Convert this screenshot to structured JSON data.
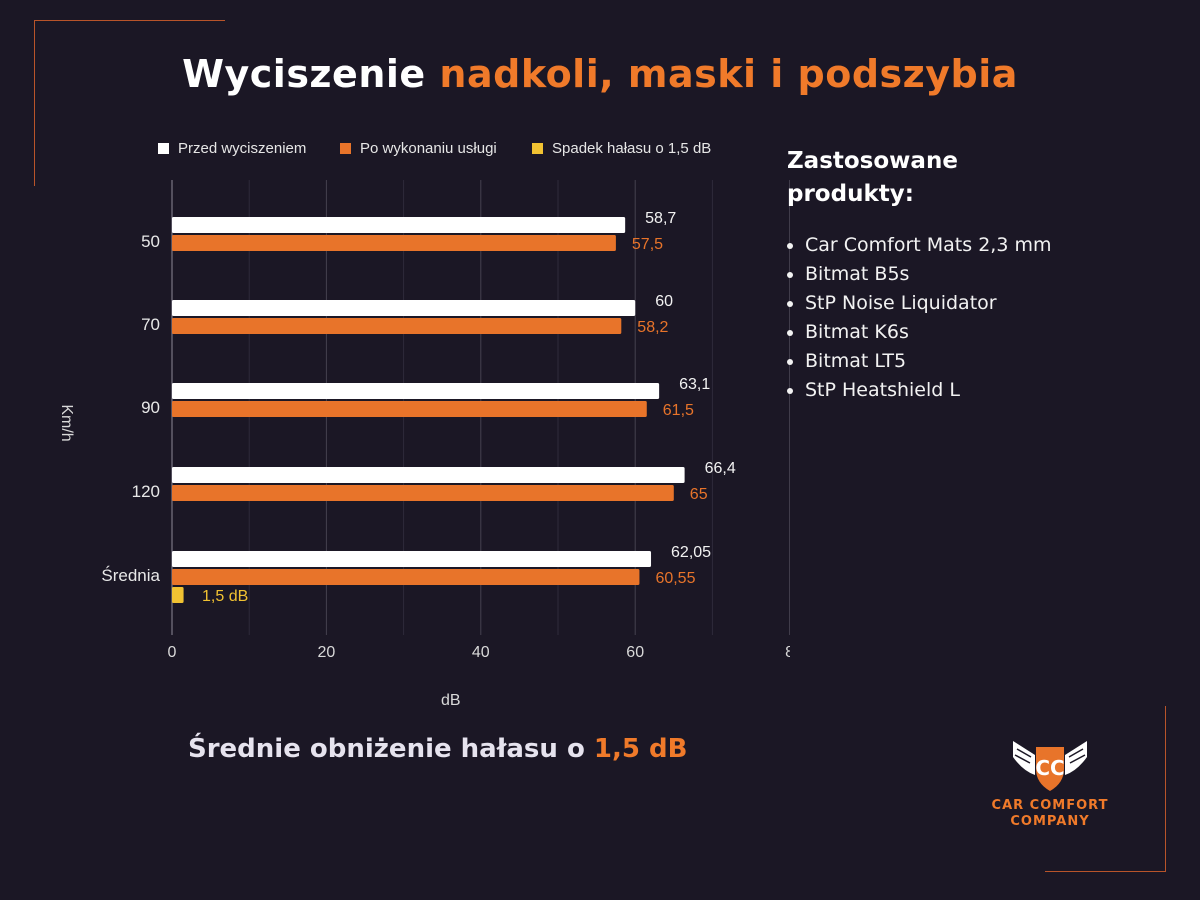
{
  "title": {
    "part1": "Wyciszenie",
    "part2": "nadkoli, maski i podszybia"
  },
  "chart_data": {
    "type": "bar",
    "orientation": "horizontal",
    "categories": [
      "50",
      "70",
      "90",
      "120",
      "Średnia"
    ],
    "series": [
      {
        "name": "Przed wyciszeniem",
        "color": "#ffffff",
        "values": [
          58.7,
          60,
          63.1,
          66.4,
          62.05
        ],
        "labels": [
          "58,7",
          "60",
          "63,1",
          "66,4",
          "62,05"
        ]
      },
      {
        "name": "Po wykonaniu usługi",
        "color": "#e8742a",
        "values": [
          57.5,
          58.2,
          61.5,
          65,
          60.55
        ],
        "labels": [
          "57,5",
          "58,2",
          "61,5",
          "65",
          "60,55"
        ]
      },
      {
        "name": "Spadek hałasu o 1,5 dB",
        "color": "#f1c232",
        "values": [
          null,
          null,
          null,
          null,
          1.5
        ],
        "labels": [
          "",
          "",
          "",
          "",
          "1,5 dB"
        ]
      }
    ],
    "xlabel": "dB",
    "ylabel": "Km/h",
    "xlim": [
      0,
      80
    ],
    "xticks": [
      "0",
      "20",
      "40",
      "60",
      "8"
    ],
    "legend": "top"
  },
  "summary": {
    "text": "Średnie obniżenie hałasu o",
    "highlight": "1,5 dB"
  },
  "products": {
    "title": "Zastosowane produkty:",
    "items": [
      "Car Comfort Mats 2,3 mm",
      "Bitmat B5s",
      "StP Noise Liquidator",
      "Bitmat K6s",
      "Bitmat LT5",
      "StP Heatshield L"
    ]
  },
  "logo": {
    "initials": "CC",
    "line1": "CAR COMFORT",
    "line2": "COMPANY"
  },
  "colors": {
    "accent": "#f07a2a",
    "background": "#1b1725",
    "yellow": "#f1c232"
  }
}
